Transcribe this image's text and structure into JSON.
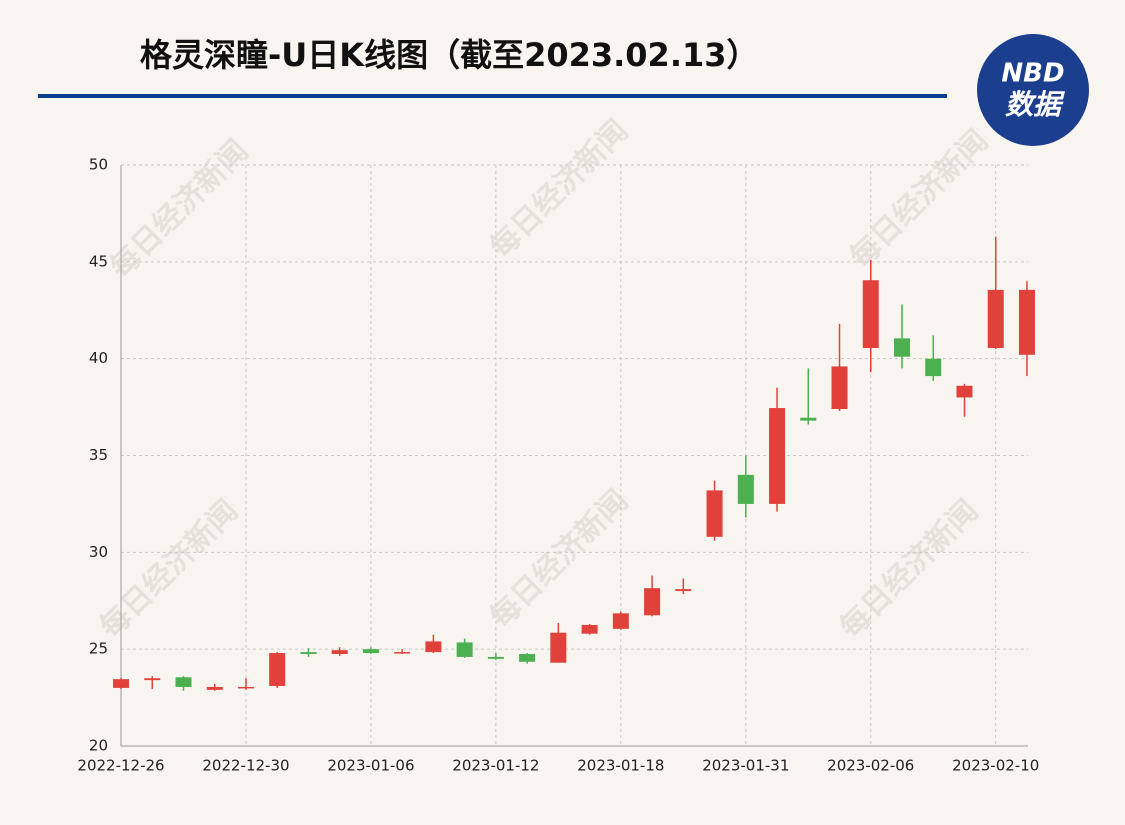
{
  "chart_data": {
    "type": "candlestick",
    "title": "格灵深瞳-U日K线图（截至2023.02.13）",
    "logo": {
      "top": "NBD",
      "bottom": "数据"
    },
    "watermark": "每日经济新闻",
    "categories": [
      "2022-12-26",
      null,
      null,
      null,
      "2022-12-30",
      null,
      null,
      null,
      "2023-01-06",
      null,
      null,
      null,
      "2023-01-12",
      null,
      null,
      null,
      "2023-01-18",
      null,
      null,
      null,
      "2023-01-31",
      null,
      null,
      null,
      "2023-02-06",
      null,
      null,
      null,
      "2023-02-10",
      null
    ],
    "open": [
      23.0,
      23.4,
      23.55,
      22.9,
      23.0,
      23.1,
      24.85,
      24.75,
      25.0,
      24.8,
      24.85,
      25.35,
      24.6,
      24.75,
      24.3,
      25.8,
      26.05,
      26.75,
      28.0,
      30.8,
      34.0,
      32.5,
      36.95,
      37.4,
      40.55,
      41.05,
      40.0,
      38.0,
      40.55,
      40.2
    ],
    "high": [
      23.5,
      23.6,
      23.6,
      23.2,
      23.5,
      24.85,
      25.05,
      25.1,
      25.1,
      25.0,
      25.75,
      25.55,
      24.8,
      24.8,
      26.35,
      26.3,
      26.95,
      28.8,
      28.65,
      33.7,
      35.0,
      38.5,
      39.5,
      41.8,
      45.1,
      42.8,
      41.2,
      38.7,
      46.3,
      44.0
    ],
    "low": [
      22.95,
      22.95,
      22.85,
      22.85,
      22.9,
      23.0,
      24.6,
      24.65,
      24.75,
      24.75,
      24.8,
      24.55,
      24.45,
      24.25,
      24.3,
      25.75,
      26.0,
      26.7,
      27.85,
      30.6,
      31.8,
      32.1,
      36.6,
      37.3,
      39.3,
      39.5,
      38.85,
      37.0,
      40.5,
      39.1
    ],
    "close": [
      23.45,
      23.5,
      23.05,
      23.05,
      23.05,
      24.8,
      24.75,
      24.95,
      24.8,
      24.85,
      25.4,
      24.6,
      24.5,
      24.35,
      25.85,
      26.25,
      26.85,
      28.15,
      28.1,
      33.2,
      32.5,
      37.45,
      36.8,
      39.6,
      44.05,
      40.1,
      39.1,
      38.6,
      43.55,
      43.55
    ],
    "up_color": "#e0413a",
    "down_color": "#4caf50",
    "ylim": [
      20,
      50
    ],
    "yticks": [
      20,
      25,
      30,
      35,
      40,
      45,
      50
    ],
    "grid": true
  }
}
